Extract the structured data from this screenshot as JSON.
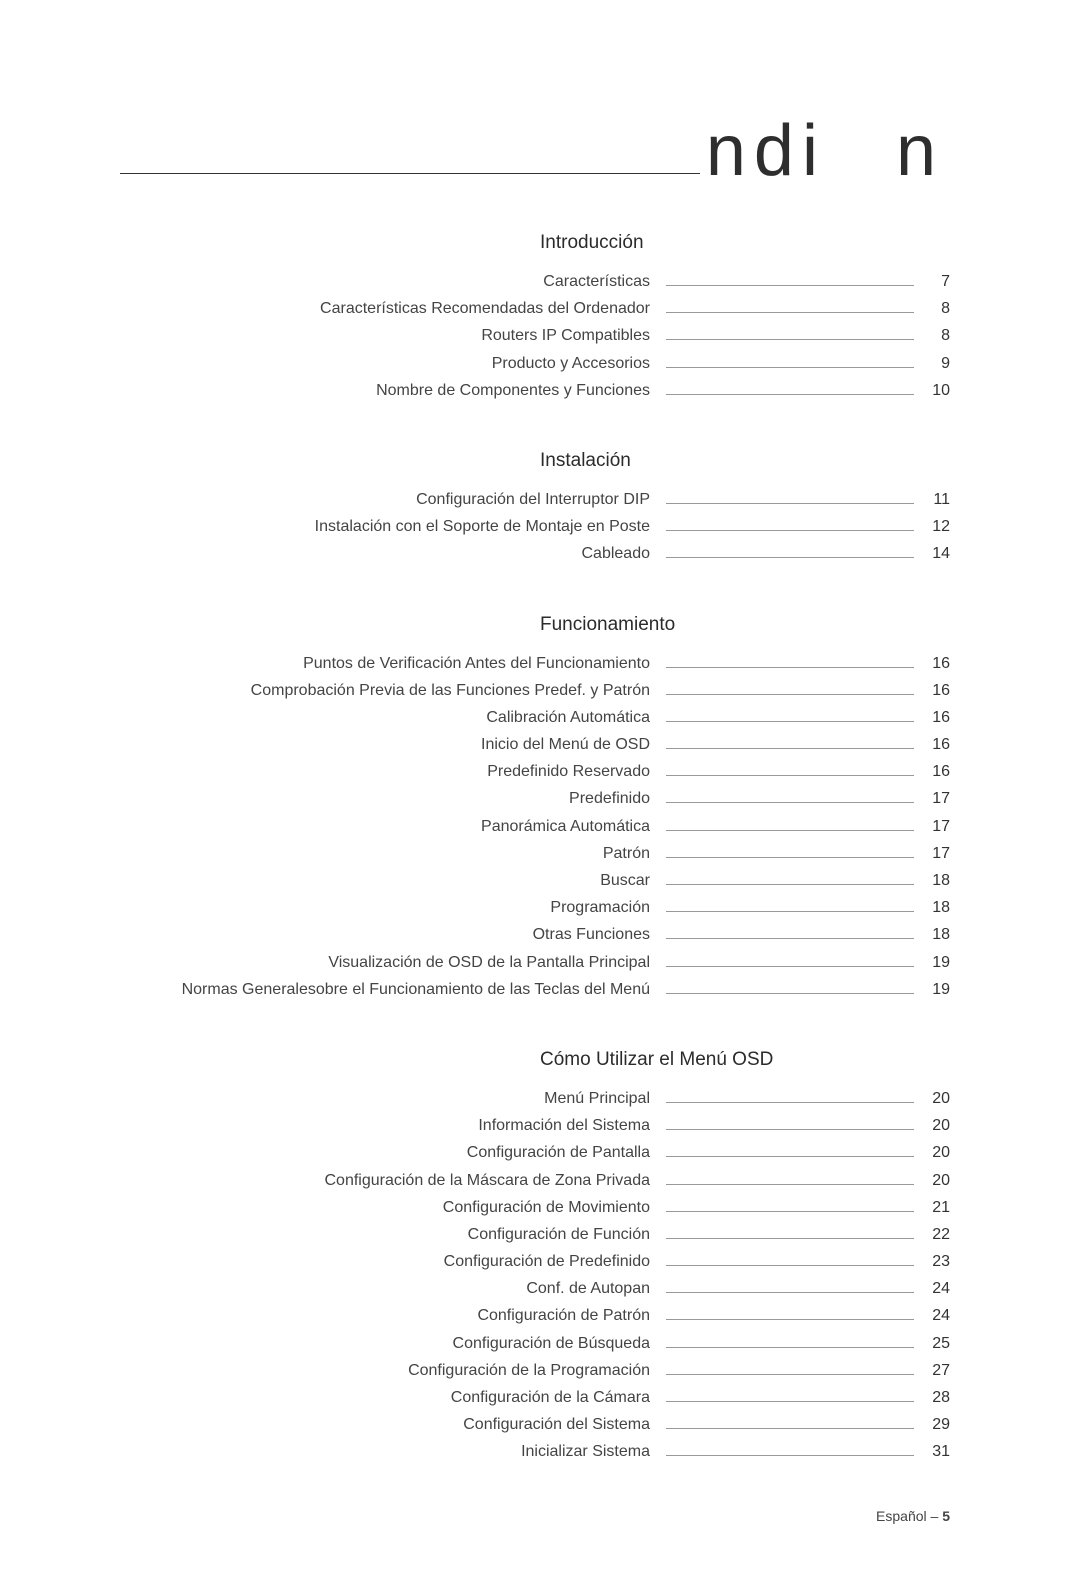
{
  "title": {
    "part1": "ndi",
    "part2": "n"
  },
  "footer": {
    "lang": "Español –",
    "page": "5"
  },
  "sections": [
    {
      "heading": "Introducción",
      "items": [
        {
          "label": "Características",
          "page": "7"
        },
        {
          "label": "Características Recomendadas del Ordenador",
          "page": "8"
        },
        {
          "label": "Routers IP Compatibles",
          "page": "8"
        },
        {
          "label": "Producto y Accesorios",
          "page": "9"
        },
        {
          "label": "Nombre de Componentes y Funciones",
          "page": "10"
        }
      ]
    },
    {
      "heading": "Instalación",
      "items": [
        {
          "label": "Configuración del Interruptor DIP",
          "page": "11"
        },
        {
          "label": "Instalación con el Soporte de Montaje en Poste",
          "page": "12"
        },
        {
          "label": "Cableado",
          "page": "14"
        }
      ]
    },
    {
      "heading": "Funcionamiento",
      "items": [
        {
          "label": "Puntos de Verificación Antes del Funcionamiento",
          "page": "16"
        },
        {
          "label": "Comprobación Previa de las Funciones Predef. y Patrón",
          "page": "16"
        },
        {
          "label": "Calibración Automática",
          "page": "16"
        },
        {
          "label": "Inicio del Menú de OSD",
          "page": "16"
        },
        {
          "label": "Predefinido Reservado",
          "page": "16"
        },
        {
          "label": "Predefinido",
          "page": "17"
        },
        {
          "label": "Panorámica Automática",
          "page": "17"
        },
        {
          "label": "Patrón",
          "page": "17"
        },
        {
          "label": "Buscar",
          "page": "18"
        },
        {
          "label": "Programación",
          "page": "18"
        },
        {
          "label": "Otras Funciones",
          "page": "18"
        },
        {
          "label": "Visualización de OSD de la Pantalla Principal",
          "page": "19"
        },
        {
          "label": "Normas Generalesobre el Funcionamiento de las Teclas del Menú",
          "page": "19"
        }
      ]
    },
    {
      "heading": "Cómo Utilizar el Menú OSD",
      "items": [
        {
          "label": "Menú Principal",
          "page": "20"
        },
        {
          "label": "Información del Sistema",
          "page": "20"
        },
        {
          "label": "Configuración de Pantalla",
          "page": "20"
        },
        {
          "label": "Configuración de la Máscara de Zona Privada",
          "page": "20"
        },
        {
          "label": "Configuración de Movimiento",
          "page": "21"
        },
        {
          "label": "Configuración de Función",
          "page": "22"
        },
        {
          "label": "Configuración de Predefinido",
          "page": "23"
        },
        {
          "label": "Conf. de Autopan",
          "page": "24"
        },
        {
          "label": "Configuración de Patrón",
          "page": "24"
        },
        {
          "label": "Configuración de Búsqueda",
          "page": "25"
        },
        {
          "label": "Configuración de la Programación",
          "page": "27"
        },
        {
          "label": "Configuración de la Cámara",
          "page": "28"
        },
        {
          "label": "Configuración del Sistema",
          "page": "29"
        },
        {
          "label": "Inicializar Sistema",
          "page": "31"
        }
      ]
    }
  ]
}
